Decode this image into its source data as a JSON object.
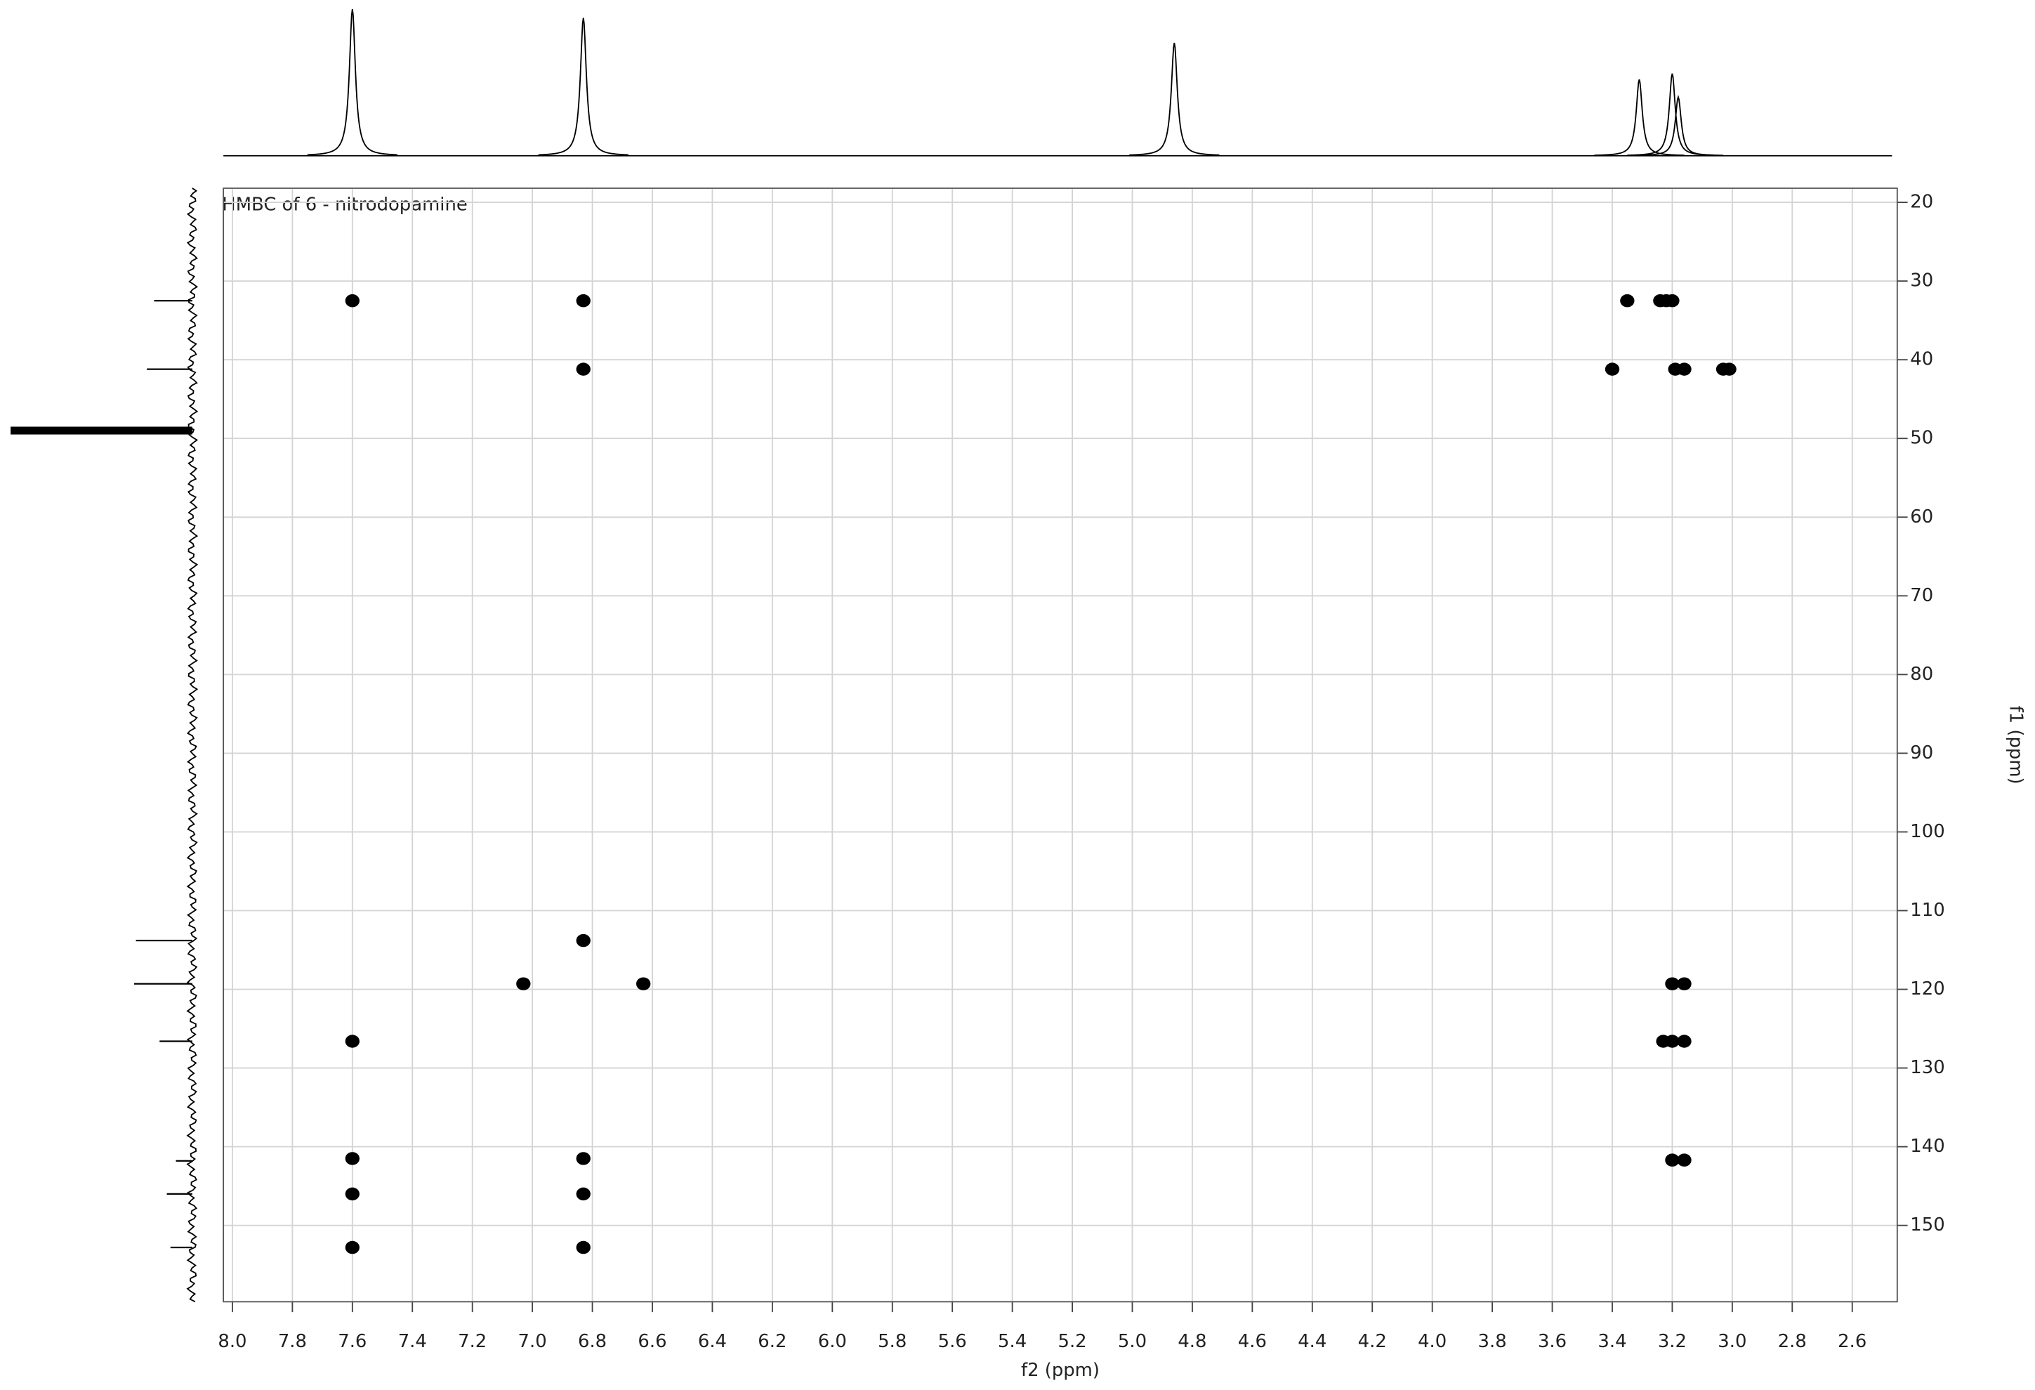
{
  "chart_data": {
    "type": "scatter",
    "title": "HMBC of 6 - nitrodopamine",
    "xlabel": "f2 (ppm)",
    "ylabel": "f1 (ppm)",
    "xlim": [
      8.03,
      2.45
    ],
    "ylim": [
      159.7,
      18.2
    ],
    "xticks": [
      {
        "value": 8,
        "label": "8.0"
      },
      7.8,
      7.6,
      7.4,
      7.2,
      {
        "value": 7,
        "label": "7.0"
      },
      6.8,
      6.6,
      6.4,
      6.2,
      {
        "value": 6,
        "label": "6.0"
      },
      5.8,
      5.6,
      5.4,
      5.2,
      {
        "value": 5,
        "label": "5.0"
      },
      4.8,
      4.6,
      4.4,
      4.2,
      {
        "value": 4,
        "label": "4.0"
      },
      3.8,
      3.6,
      3.4,
      3.2,
      {
        "value": 3,
        "label": "3.0"
      },
      2.8,
      2.6
    ],
    "yticks": [
      20,
      30,
      40,
      50,
      60,
      70,
      80,
      90,
      100,
      110,
      120,
      130,
      140,
      150
    ],
    "grid": true,
    "color": "#000000",
    "x": [
      7.6,
      6.83,
      3.35,
      3.24,
      3.22,
      3.2,
      6.83,
      3.4,
      3.19,
      3.16,
      3.03,
      3.01,
      6.83,
      7.03,
      6.63,
      3.2,
      3.16,
      7.6,
      3.23,
      3.2,
      3.16,
      7.6,
      6.83,
      3.2,
      3.16,
      7.6,
      6.83,
      7.6,
      6.83
    ],
    "y": [
      32.5,
      32.5,
      32.5,
      32.5,
      32.5,
      32.5,
      41.2,
      41.2,
      41.2,
      41.2,
      41.2,
      41.2,
      113.8,
      119.3,
      119.3,
      119.3,
      119.3,
      126.6,
      126.6,
      126.6,
      126.6,
      141.5,
      141.5,
      141.7,
      141.7,
      146.0,
      146.0,
      152.8,
      152.8
    ],
    "f2_projection": {
      "x": [
        7.6,
        6.83,
        4.86,
        3.31,
        3.2,
        3.18
      ],
      "values": [
        1.0,
        0.94,
        0.77,
        0.52,
        0.56,
        0.4
      ]
    },
    "f1_projection": {
      "y": [
        32.5,
        41.2,
        49.0,
        113.8,
        119.3,
        126.6,
        141.8,
        146.0,
        152.8
      ],
      "values": [
        0.21,
        0.25,
        1.0,
        0.31,
        0.32,
        0.18,
        0.09,
        0.14,
        0.12
      ]
    }
  }
}
